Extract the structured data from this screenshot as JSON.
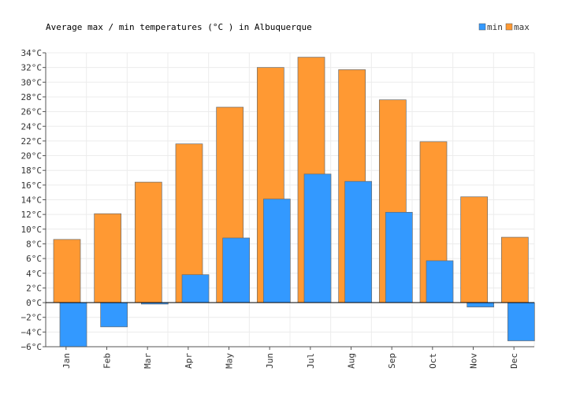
{
  "chart_data": {
    "type": "bar",
    "title": "Average max / min temperatures (°C ) in Albuquerque",
    "categories": [
      "Jan",
      "Feb",
      "Mar",
      "Apr",
      "May",
      "Jun",
      "Jul",
      "Aug",
      "Sep",
      "Oct",
      "Nov",
      "Dec"
    ],
    "series": [
      {
        "name": "min",
        "color": "#3399ff",
        "values": [
          -6.0,
          -3.3,
          -0.2,
          3.8,
          8.8,
          14.1,
          17.5,
          16.5,
          12.3,
          5.7,
          -0.6,
          -5.2
        ]
      },
      {
        "name": "max",
        "color": "#ff9933",
        "values": [
          8.6,
          12.1,
          16.4,
          21.6,
          26.6,
          32.0,
          33.4,
          31.7,
          27.6,
          21.9,
          14.4,
          8.9
        ]
      }
    ],
    "ylim": [
      -6,
      34
    ],
    "ytick_step": 2,
    "ytick_unit": "°C",
    "grid": true,
    "legend": "top-right"
  }
}
